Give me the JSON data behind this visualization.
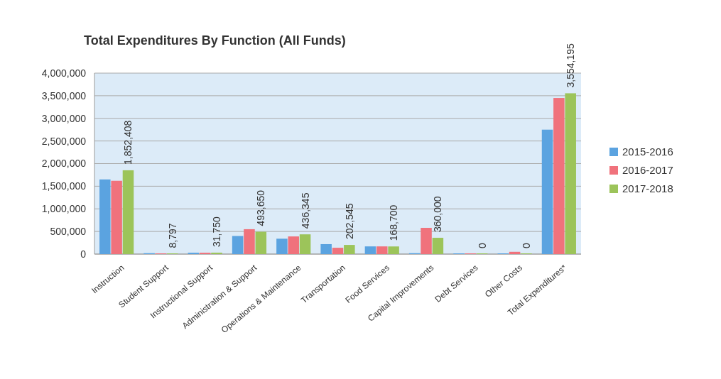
{
  "chart_data": {
    "type": "bar",
    "title": "Total Expenditures By Function (All Funds)",
    "categories": [
      "Instruction",
      "Student Support",
      "Instructional Support",
      "Administration & Support",
      "Operations & Maintenance",
      "Transportation",
      "Food Services",
      "Capital Improvements",
      "Debt Services",
      "Other Costs",
      "Total Expenditures*"
    ],
    "series": [
      {
        "name": "2015-2016",
        "color": "#5ba3e0",
        "values": [
          1650000,
          20000,
          30000,
          400000,
          340000,
          220000,
          170000,
          20000,
          10000,
          5000,
          2750000
        ]
      },
      {
        "name": "2016-2017",
        "color": "#f0727c",
        "values": [
          1620000,
          15000,
          30000,
          550000,
          390000,
          140000,
          170000,
          580000,
          10000,
          50000,
          3450000
        ]
      },
      {
        "name": "2017-2018",
        "color": "#9cc45a",
        "values": [
          1852408,
          8797,
          31750,
          493650,
          436345,
          202545,
          168700,
          360000,
          0,
          0,
          3554195
        ],
        "value_labels": [
          "1,852,408",
          "8,797",
          "31,750",
          "493,650",
          "436,345",
          "202,545",
          "168,700",
          "360,000",
          "0",
          "0",
          "3,554,195"
        ]
      }
    ],
    "ylim": [
      0,
      4000000
    ],
    "yticks": [
      {
        "value": 0,
        "label": "0"
      },
      {
        "value": 500000,
        "label": "500,000"
      },
      {
        "value": 1000000,
        "label": "1,000,000"
      },
      {
        "value": 1500000,
        "label": "1,500,000"
      },
      {
        "value": 2000000,
        "label": "2,000,000"
      },
      {
        "value": 2500000,
        "label": "2,500,000"
      },
      {
        "value": 3000000,
        "label": "3,000,000"
      },
      {
        "value": 3500000,
        "label": "3,500,000"
      },
      {
        "value": 4000000,
        "label": "4,000,000"
      }
    ],
    "grid": "y",
    "legend": "right"
  }
}
